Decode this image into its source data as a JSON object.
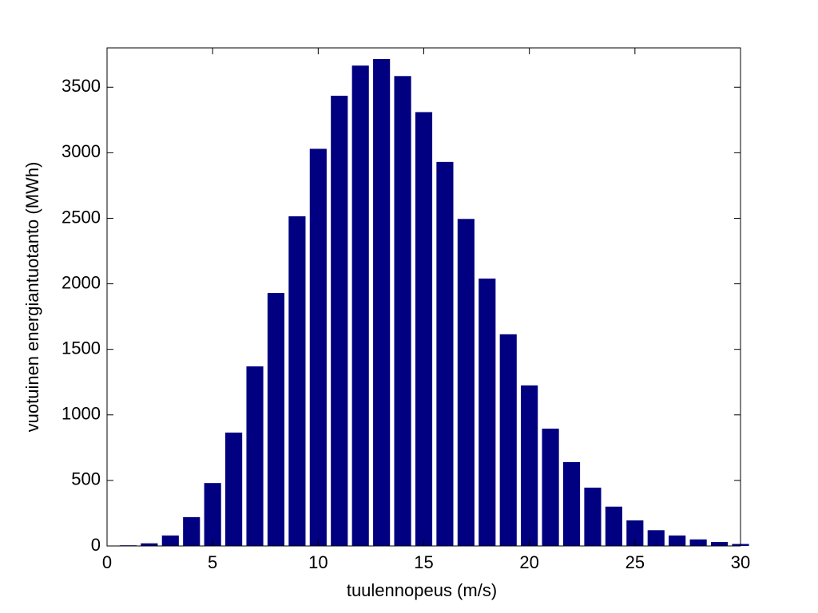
{
  "chart_data": {
    "type": "bar",
    "xlabel": "tuulennopeus (m/s)",
    "ylabel": "vuotuinen energiantuotanto (MWh)",
    "x": [
      1,
      2,
      3,
      4,
      5,
      6,
      7,
      8,
      9,
      10,
      11,
      12,
      13,
      14,
      15,
      16,
      17,
      18,
      19,
      20,
      21,
      22,
      23,
      24,
      25,
      26,
      27,
      28,
      29,
      30
    ],
    "values": [
      5,
      20,
      80,
      220,
      480,
      865,
      1370,
      1930,
      2515,
      3030,
      3435,
      3665,
      3715,
      3585,
      3310,
      2930,
      2495,
      2040,
      1615,
      1225,
      895,
      640,
      445,
      300,
      195,
      120,
      80,
      50,
      30,
      15
    ],
    "color": "#000080",
    "xlim": [
      0,
      30
    ],
    "xticks": [
      0,
      5,
      10,
      15,
      20,
      25,
      30
    ],
    "ylim": [
      0,
      3800
    ],
    "yticks": [
      0,
      500,
      1000,
      1500,
      2000,
      2500,
      3000,
      3500
    ],
    "grid": false
  }
}
